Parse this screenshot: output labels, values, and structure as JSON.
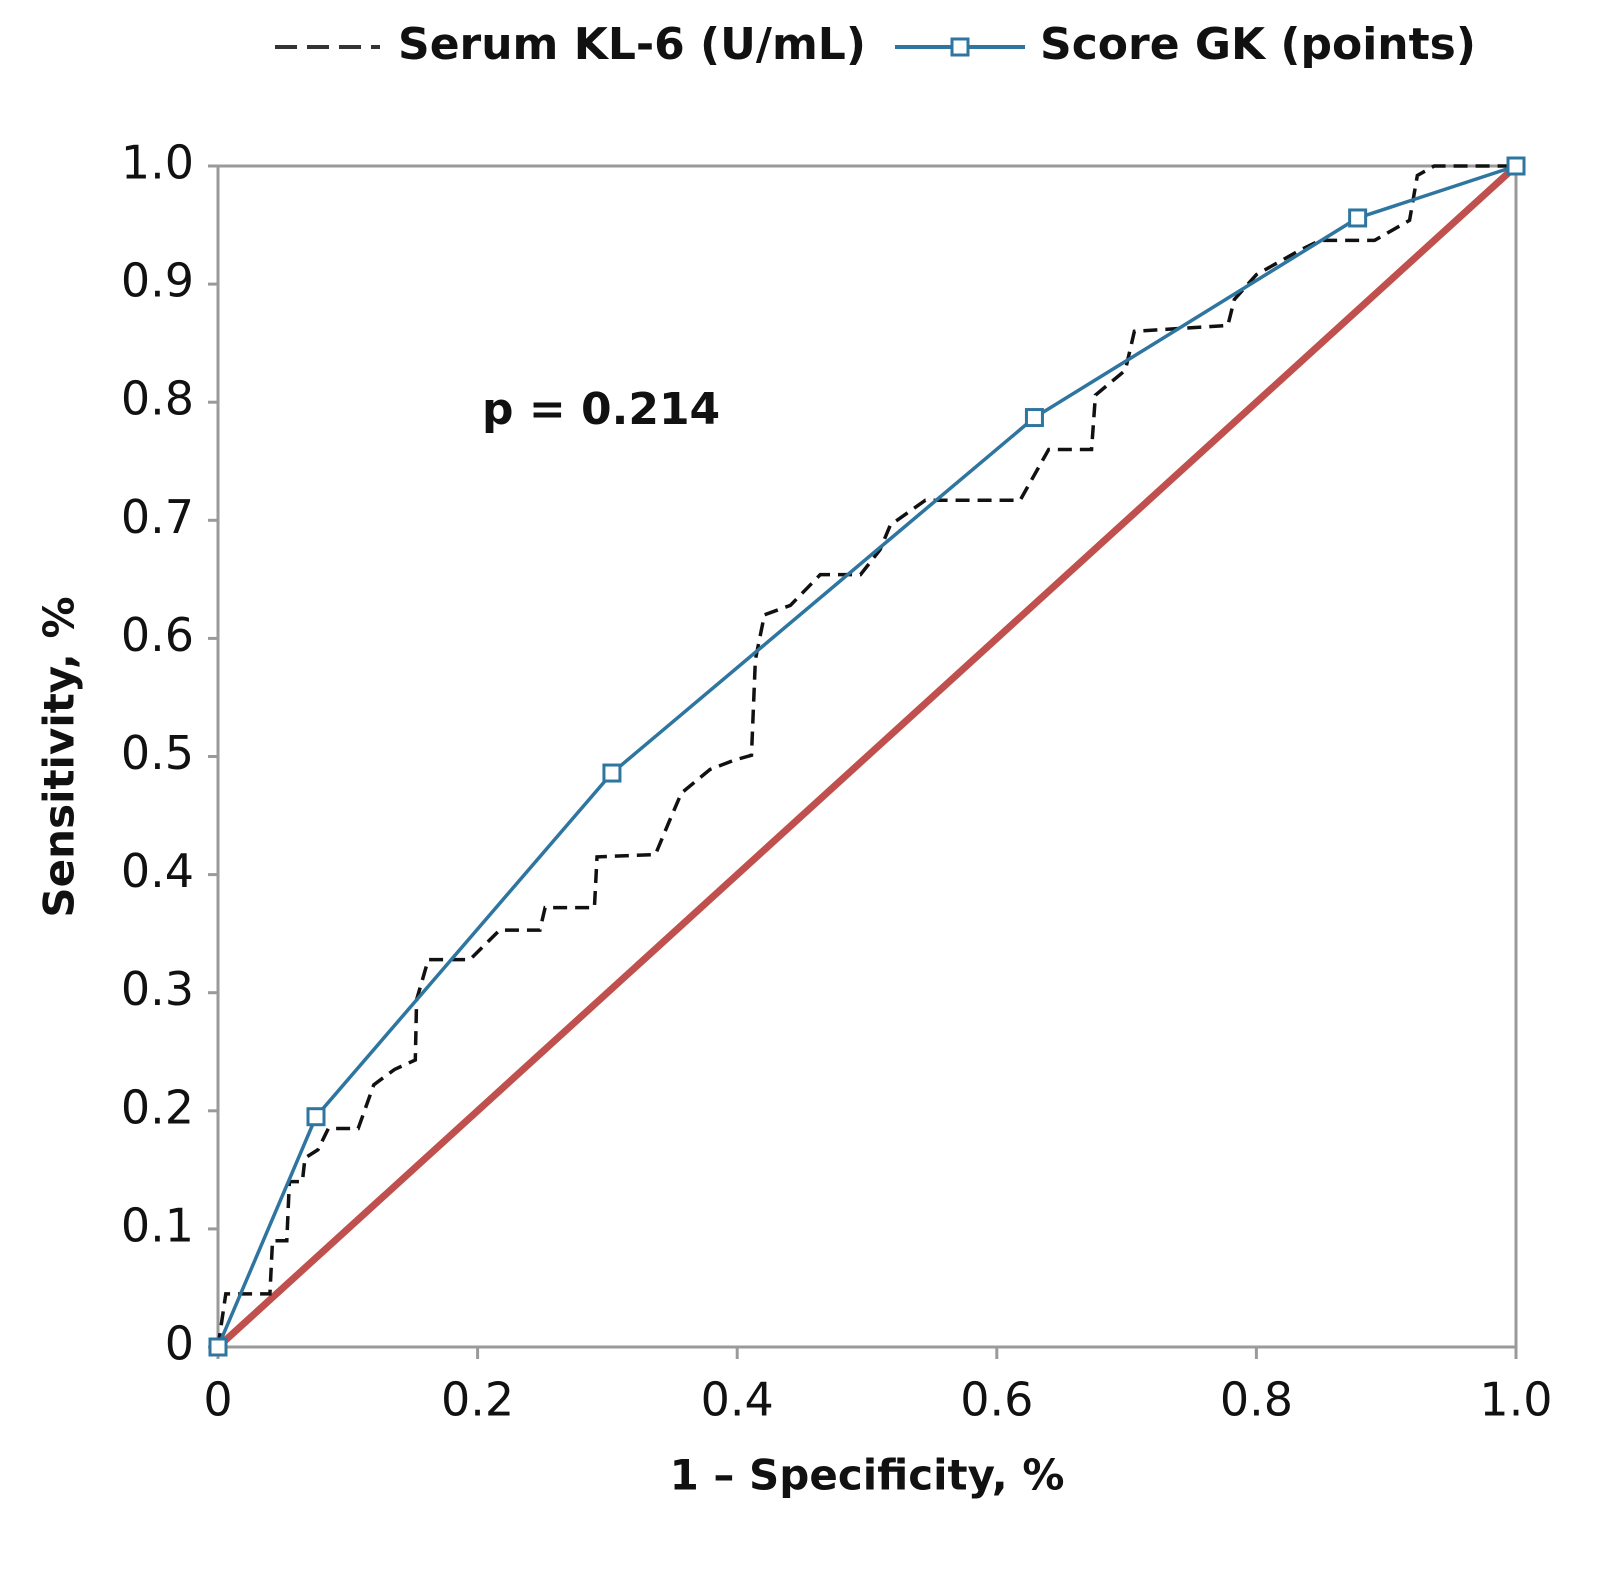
{
  "chart_data": {
    "type": "line",
    "xlabel": "1 – Specificity, %",
    "ylabel": "Sensitivity, %",
    "annotation": "p = 0.214",
    "xlim": [
      0,
      1
    ],
    "ylim": [
      0,
      1
    ],
    "xticks": [
      0,
      0.2,
      0.4,
      0.6,
      0.8,
      {
        "value": 1,
        "label": "1.0"
      }
    ],
    "yticks": [
      0,
      0.1,
      0.2,
      0.3,
      0.4,
      0.5,
      0.6,
      0.7,
      0.8,
      0.9,
      {
        "value": 1,
        "label": "1.0"
      }
    ],
    "grid": false,
    "legend": "top",
    "series": [
      {
        "name": "Serum KL-6 (U/mL)",
        "color": "#111111",
        "dash": true,
        "x": [
          0,
          0.006,
          0.04,
          0.042,
          0.053,
          0.055,
          0.065,
          0.067,
          0.077,
          0.085,
          0.108,
          0.12,
          0.136,
          0.152,
          0.153,
          0.162,
          0.194,
          0.217,
          0.248,
          0.252,
          0.29,
          0.292,
          0.337,
          0.348,
          0.357,
          0.379,
          0.398,
          0.411,
          0.414,
          0.421,
          0.441,
          0.464,
          0.495,
          0.51,
          0.518,
          0.545,
          0.618,
          0.64,
          0.673,
          0.676,
          0.699,
          0.706,
          0.778,
          0.783,
          0.8,
          0.834,
          0.849,
          0.891,
          0.918,
          0.924,
          0.937,
          1
        ],
        "values": [
          0,
          0.045,
          0.045,
          0.09,
          0.09,
          0.14,
          0.14,
          0.16,
          0.167,
          0.185,
          0.185,
          0.222,
          0.235,
          0.243,
          0.294,
          0.328,
          0.328,
          0.353,
          0.353,
          0.372,
          0.372,
          0.415,
          0.417,
          0.446,
          0.469,
          0.489,
          0.497,
          0.501,
          0.582,
          0.62,
          0.628,
          0.654,
          0.654,
          0.675,
          0.696,
          0.717,
          0.717,
          0.76,
          0.76,
          0.806,
          0.827,
          0.86,
          0.865,
          0.887,
          0.908,
          0.929,
          0.937,
          0.937,
          0.954,
          0.992,
          1,
          1
        ]
      },
      {
        "name": "Score GK (points)",
        "color": "#2e75a0",
        "marker": "square",
        "x": [
          0,
          0.0755,
          0.3035,
          0.629,
          0.878,
          1
        ],
        "values": [
          0,
          0.195,
          0.486,
          0.787,
          0.956,
          1
        ]
      }
    ],
    "diagonal": {
      "color": "#c0504d",
      "x": [
        0,
        1
      ],
      "values": [
        0,
        1
      ]
    }
  }
}
